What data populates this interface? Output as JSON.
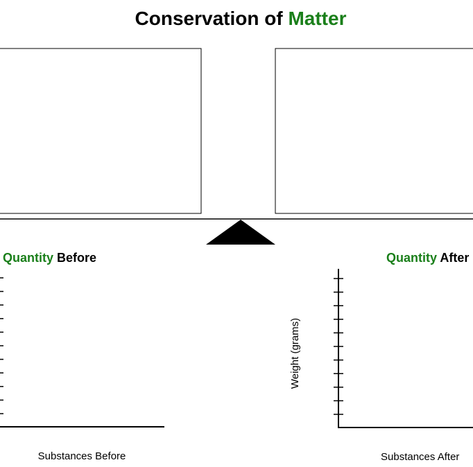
{
  "title": {
    "prefix": "Conservation of",
    "highlight": "Matter"
  },
  "left_panel": {
    "heading": {
      "highlight": "Quantity",
      "rest": "Before"
    },
    "x_label": "Substances Before"
  },
  "right_panel": {
    "heading": {
      "highlight": "Quantity",
      "rest": "After"
    },
    "y_label": "Weight (grams)",
    "x_label": "Substances After"
  }
}
